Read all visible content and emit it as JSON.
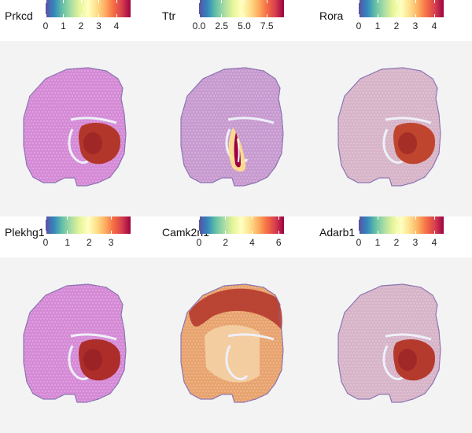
{
  "palette": [
    "#5e4fa2",
    "#3288bd",
    "#66c2a5",
    "#abdda4",
    "#e6f598",
    "#ffffbf",
    "#fee08b",
    "#fdae61",
    "#f46d43",
    "#d53e4f",
    "#9e0142"
  ],
  "panels": [
    {
      "gene": "Prkcd",
      "ticks": [
        "0",
        "1",
        "2",
        "3",
        "4"
      ],
      "min": 0,
      "max": 4.8,
      "tickvals": [
        0,
        1,
        2,
        3,
        4
      ],
      "base": "#d58ad6",
      "region": "thal",
      "regionColor": "#b3362b",
      "shell": false,
      "ventricle": false
    },
    {
      "gene": "Ttr",
      "ticks": [
        "0.0",
        "2.5",
        "5.0",
        "7.5"
      ],
      "min": 0,
      "max": 9.4,
      "tickvals": [
        0,
        2.5,
        5,
        7.5
      ],
      "base": "#c79ad0",
      "region": "none",
      "regionColor": "#9e0142",
      "shell": false,
      "ventricle": true
    },
    {
      "gene": "Rora",
      "ticks": [
        "0",
        "1",
        "2",
        "3",
        "4"
      ],
      "min": 0,
      "max": 4.5,
      "tickvals": [
        0,
        1,
        2,
        3,
        4
      ],
      "base": "#d7b4c8",
      "region": "thal",
      "regionColor": "#c0452e",
      "shell": false,
      "ventricle": false
    },
    {
      "gene": "Plekhg1",
      "ticks": [
        "0",
        "1",
        "2",
        "3"
      ],
      "min": 0,
      "max": 3.9,
      "tickvals": [
        0,
        1,
        2,
        3
      ],
      "base": "#d58ad6",
      "region": "thal",
      "regionColor": "#ac2d2a",
      "shell": false,
      "ventricle": false
    },
    {
      "gene": "Camk2n1",
      "ticks": [
        "0",
        "2",
        "4",
        "6"
      ],
      "min": 0,
      "max": 6.4,
      "tickvals": [
        0,
        2,
        4,
        6
      ],
      "base": "#e8a36e",
      "region": "none",
      "regionColor": "#c0452e",
      "shell": true,
      "ventricle": false
    },
    {
      "gene": "Adarb1",
      "ticks": [
        "0",
        "1",
        "2",
        "3",
        "4"
      ],
      "min": 0,
      "max": 4.5,
      "tickvals": [
        0,
        1,
        2,
        3,
        4
      ],
      "base": "#d7b4c8",
      "region": "thal",
      "regionColor": "#b53a2e",
      "shell": false,
      "ventricle": false
    }
  ]
}
